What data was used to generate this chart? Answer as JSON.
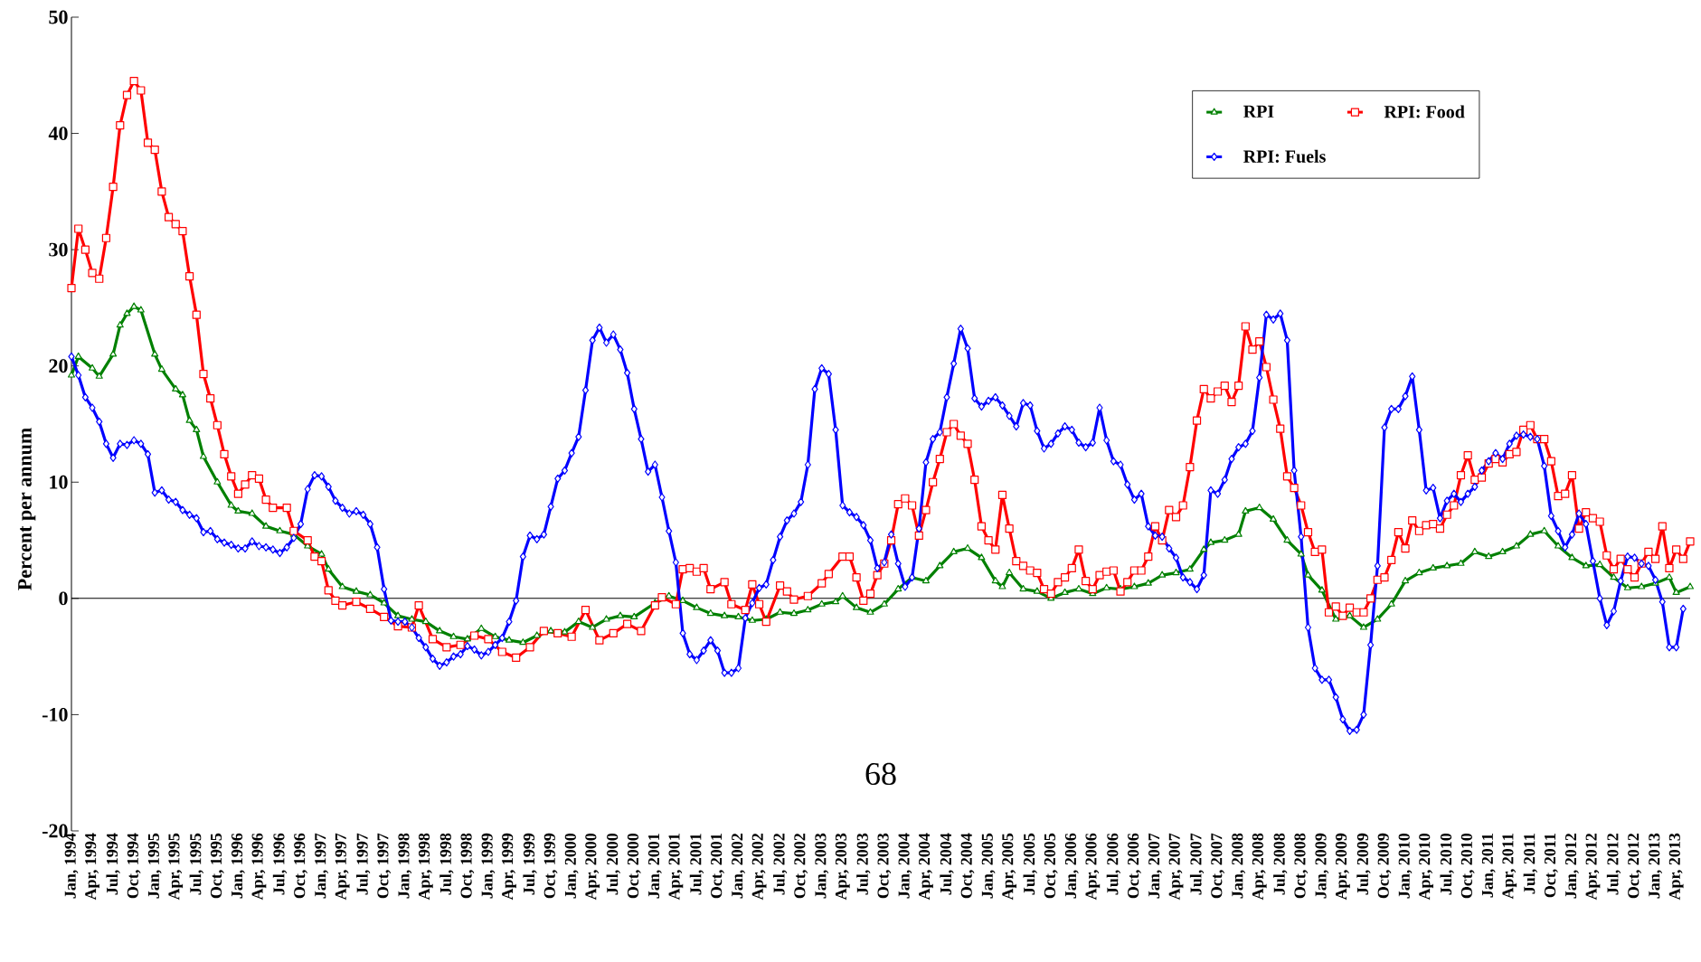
{
  "chart_data": {
    "type": "line",
    "ylabel": "Percent per annum",
    "xlim": [
      "1994-01",
      "2013-06"
    ],
    "ylim": [
      -20,
      50
    ],
    "yticks": [
      -20,
      -10,
      0,
      10,
      20,
      30,
      40,
      50
    ],
    "xticks": [
      {
        "value": "1994-01",
        "label": "Jan, 1994"
      },
      {
        "value": "1994-04",
        "label": "Apr, 1994"
      },
      {
        "value": "1994-07",
        "label": "Jul, 1994"
      },
      {
        "value": "1994-10",
        "label": "Oct, 1994"
      },
      {
        "value": "1995-01",
        "label": "Jan, 1995"
      },
      {
        "value": "1995-04",
        "label": "Apr, 1995"
      },
      {
        "value": "1995-07",
        "label": "Jul, 1995"
      },
      {
        "value": "1995-10",
        "label": "Oct, 1995"
      },
      {
        "value": "1996-01",
        "label": "Jan, 1996"
      },
      {
        "value": "1996-04",
        "label": "Apr, 1996"
      },
      {
        "value": "1996-07",
        "label": "Jul, 1996"
      },
      {
        "value": "1996-10",
        "label": "Oct, 1996"
      },
      {
        "value": "1997-01",
        "label": "Jan, 1997"
      },
      {
        "value": "1997-04",
        "label": "Apr, 1997"
      },
      {
        "value": "1997-07",
        "label": "Jul, 1997"
      },
      {
        "value": "1997-10",
        "label": "Oct, 1997"
      },
      {
        "value": "1998-01",
        "label": "Jan, 1998"
      },
      {
        "value": "1998-04",
        "label": "Apr, 1998"
      },
      {
        "value": "1998-07",
        "label": "Jul, 1998"
      },
      {
        "value": "1998-10",
        "label": "Oct, 1998"
      },
      {
        "value": "1999-01",
        "label": "Jan, 1999"
      },
      {
        "value": "1999-04",
        "label": "Apr, 1999"
      },
      {
        "value": "1999-07",
        "label": "Jul, 1999"
      },
      {
        "value": "1999-10",
        "label": "Oct, 1999"
      },
      {
        "value": "2000-01",
        "label": "Jan, 2000"
      },
      {
        "value": "2000-04",
        "label": "Apr, 2000"
      },
      {
        "value": "2000-07",
        "label": "Jul, 2000"
      },
      {
        "value": "2000-10",
        "label": "Oct, 2000"
      },
      {
        "value": "2001-01",
        "label": "Jan, 2001"
      },
      {
        "value": "2001-04",
        "label": "Apr, 2001"
      },
      {
        "value": "2001-07",
        "label": "Jul, 2001"
      },
      {
        "value": "2001-10",
        "label": "Oct, 2001"
      },
      {
        "value": "2002-01",
        "label": "Jan, 2002"
      },
      {
        "value": "2002-04",
        "label": "Apr, 2002"
      },
      {
        "value": "2002-07",
        "label": "Jul, 2002"
      },
      {
        "value": "2002-10",
        "label": "Oct, 2002"
      },
      {
        "value": "2003-01",
        "label": "Jan, 2003"
      },
      {
        "value": "2003-04",
        "label": "Apr, 2003"
      },
      {
        "value": "2003-07",
        "label": "Jul, 2003"
      },
      {
        "value": "2003-10",
        "label": "Oct, 2003"
      },
      {
        "value": "2004-01",
        "label": "Jan, 2004"
      },
      {
        "value": "2004-04",
        "label": "Apr, 2004"
      },
      {
        "value": "2004-07",
        "label": "Jul, 2004"
      },
      {
        "value": "2004-10",
        "label": "Oct, 2004"
      },
      {
        "value": "2005-01",
        "label": "Jan, 2005"
      },
      {
        "value": "2005-04",
        "label": "Apr, 2005"
      },
      {
        "value": "2005-07",
        "label": "Jul, 2005"
      },
      {
        "value": "2005-10",
        "label": "Oct, 2005"
      },
      {
        "value": "2006-01",
        "label": "Jan, 2006"
      },
      {
        "value": "2006-04",
        "label": "Apr, 2006"
      },
      {
        "value": "2006-07",
        "label": "Jul, 2006"
      },
      {
        "value": "2006-10",
        "label": "Oct, 2006"
      },
      {
        "value": "2007-01",
        "label": "Jan, 2007"
      },
      {
        "value": "2007-04",
        "label": "Apr, 2007"
      },
      {
        "value": "2007-07",
        "label": "Jul, 2007"
      },
      {
        "value": "2007-10",
        "label": "Oct, 2007"
      },
      {
        "value": "2008-01",
        "label": "Jan, 2008"
      },
      {
        "value": "2008-04",
        "label": "Apr, 2008"
      },
      {
        "value": "2008-07",
        "label": "Jul, 2008"
      },
      {
        "value": "2008-10",
        "label": "Oct, 2008"
      },
      {
        "value": "2009-01",
        "label": "Jan, 2009"
      },
      {
        "value": "2009-04",
        "label": "Apr, 2009"
      },
      {
        "value": "2009-07",
        "label": "Jul, 2009"
      },
      {
        "value": "2009-10",
        "label": "Oct, 2009"
      },
      {
        "value": "2010-01",
        "label": "Jan, 2010"
      },
      {
        "value": "2010-04",
        "label": "Apr, 2010"
      },
      {
        "value": "2010-07",
        "label": "Jul, 2010"
      },
      {
        "value": "2010-10",
        "label": "Oct, 2010"
      },
      {
        "value": "2011-01",
        "label": "Jan, 2011"
      },
      {
        "value": "2011-04",
        "label": "Apr, 2011"
      },
      {
        "value": "2011-07",
        "label": "Jul, 2011"
      },
      {
        "value": "2011-10",
        "label": "Oct, 2011"
      },
      {
        "value": "2012-01",
        "label": "Jan, 2012"
      },
      {
        "value": "2012-04",
        "label": "Apr, 2012"
      },
      {
        "value": "2012-07",
        "label": "Jul, 2012"
      },
      {
        "value": "2012-10",
        "label": "Oct, 2012"
      },
      {
        "value": "2013-01",
        "label": "Jan, 2013"
      },
      {
        "value": "2013-04",
        "label": "Apr, 2013"
      }
    ],
    "legend": "top right",
    "grid": false,
    "line_style": "solid",
    "annotations": [
      "68"
    ],
    "ref_lines": [
      {
        "axis": "y",
        "value": 0,
        "color": "#000000"
      }
    ],
    "series": [
      {
        "name": "RPI",
        "color": "#008000",
        "marker": "triangle",
        "x": [
          "1994-01",
          "1994-02",
          "1994-04",
          "1994-05",
          "1994-07",
          "1994-08",
          "1994-09",
          "1994-10",
          "1994-11",
          "1995-01",
          "1995-02",
          "1995-04",
          "1995-05",
          "1995-06",
          "1995-07",
          "1995-08",
          "1995-10",
          "1995-12",
          "1996-01",
          "1996-03",
          "1996-05",
          "1996-07",
          "1996-09",
          "1996-11",
          "1997-01",
          "1997-02",
          "1997-04",
          "1997-06",
          "1997-08",
          "1997-10",
          "1997-12",
          "1998-02",
          "1998-04",
          "1998-06",
          "1998-08",
          "1998-10",
          "1998-12",
          "1999-02",
          "1999-04",
          "1999-06",
          "1999-08",
          "1999-10",
          "1999-12",
          "2000-02",
          "2000-04",
          "2000-06",
          "2000-08",
          "2000-10",
          "2001-01",
          "2001-03",
          "2001-05",
          "2001-07",
          "2001-09",
          "2001-11",
          "2002-01",
          "2002-03",
          "2002-05",
          "2002-07",
          "2002-09",
          "2002-11",
          "2003-01",
          "2003-03",
          "2003-04",
          "2003-06",
          "2003-08",
          "2003-10",
          "2003-12",
          "2004-02",
          "2004-04",
          "2004-06",
          "2004-08",
          "2004-10",
          "2004-12",
          "2005-02",
          "2005-03",
          "2005-04",
          "2005-06",
          "2005-08",
          "2005-10",
          "2005-12",
          "2006-02",
          "2006-04",
          "2006-06",
          "2006-08",
          "2006-10",
          "2006-12",
          "2007-02",
          "2007-04",
          "2007-06",
          "2007-08",
          "2007-09",
          "2007-11",
          "2008-01",
          "2008-02",
          "2008-04",
          "2008-06",
          "2008-08",
          "2008-10",
          "2008-11",
          "2009-01",
          "2009-03",
          "2009-05",
          "2009-07",
          "2009-09",
          "2009-11",
          "2010-01",
          "2010-03",
          "2010-05",
          "2010-07",
          "2010-09",
          "2010-11",
          "2011-01",
          "2011-03",
          "2011-05",
          "2011-07",
          "2011-09",
          "2011-11",
          "2012-01",
          "2012-03",
          "2012-05",
          "2012-07",
          "2012-09",
          "2012-11",
          "2013-01",
          "2013-03",
          "2013-04",
          "2013-06"
        ],
        "values": [
          19.2,
          20.8,
          19.8,
          19.1,
          21,
          23.5,
          24.5,
          25.1,
          24.8,
          21,
          19.7,
          18,
          17.5,
          15.3,
          14.5,
          12.2,
          10,
          8,
          7.5,
          7.3,
          6.2,
          5.8,
          5.5,
          4.5,
          3.8,
          2.5,
          1,
          0.6,
          0.3,
          -0.4,
          -1.5,
          -1.8,
          -2,
          -2.8,
          -3.3,
          -3.5,
          -2.6,
          -3.3,
          -3.6,
          -3.8,
          -3.2,
          -2.8,
          -2.9,
          -2,
          -2.5,
          -1.8,
          -1.5,
          -1.6,
          -0.4,
          0.2,
          -0.2,
          -0.8,
          -1.3,
          -1.5,
          -1.6,
          -1.9,
          -1.8,
          -1.2,
          -1.3,
          -1,
          -0.5,
          -0.3,
          0.2,
          -0.8,
          -1.2,
          -0.5,
          0.8,
          1.8,
          1.5,
          2.8,
          4,
          4.3,
          3.5,
          1.5,
          1,
          2.2,
          0.8,
          0.6,
          0,
          0.5,
          0.8,
          0.4,
          0.9,
          0.8,
          1,
          1.3,
          2,
          2.2,
          2.5,
          4.2,
          4.8,
          5,
          5.5,
          7.5,
          7.8,
          6.8,
          5,
          3.8,
          2,
          0.7,
          -1.8,
          -1.5,
          -2.5,
          -1.8,
          -0.5,
          1.5,
          2.2,
          2.6,
          2.8,
          3,
          4,
          3.6,
          4,
          4.5,
          5.5,
          5.8,
          4.5,
          3.5,
          2.8,
          2.9,
          1.8,
          0.9,
          1,
          1.3,
          1.8,
          0.5,
          1
        ]
      },
      {
        "name": "RPI: Food",
        "color": "#ff0000",
        "marker": "square",
        "x": [
          "1994-01",
          "1994-02",
          "1994-03",
          "1994-04",
          "1994-05",
          "1994-06",
          "1994-07",
          "1994-08",
          "1994-09",
          "1994-10",
          "1994-11",
          "1994-12",
          "1995-01",
          "1995-02",
          "1995-03",
          "1995-04",
          "1995-05",
          "1995-06",
          "1995-07",
          "1995-08",
          "1995-09",
          "1995-10",
          "1995-11",
          "1995-12",
          "1996-01",
          "1996-02",
          "1996-03",
          "1996-04",
          "1996-05",
          "1996-06",
          "1996-08",
          "1996-09",
          "1996-11",
          "1996-12",
          "1997-01",
          "1997-02",
          "1997-03",
          "1997-04",
          "1997-06",
          "1997-08",
          "1997-10",
          "1997-12",
          "1998-02",
          "1998-03",
          "1998-05",
          "1998-07",
          "1998-09",
          "1998-11",
          "1999-01",
          "1999-03",
          "1999-05",
          "1999-07",
          "1999-09",
          "1999-11",
          "2000-01",
          "2000-03",
          "2000-05",
          "2000-07",
          "2000-09",
          "2000-11",
          "2001-01",
          "2001-02",
          "2001-04",
          "2001-05",
          "2001-06",
          "2001-07",
          "2001-08",
          "2001-09",
          "2001-11",
          "2001-12",
          "2002-02",
          "2002-03",
          "2002-04",
          "2002-05",
          "2002-07",
          "2002-08",
          "2002-09",
          "2002-11",
          "2003-01",
          "2003-02",
          "2003-04",
          "2003-05",
          "2003-06",
          "2003-07",
          "2003-08",
          "2003-09",
          "2003-10",
          "2003-11",
          "2003-12",
          "2004-01",
          "2004-02",
          "2004-03",
          "2004-04",
          "2004-05",
          "2004-06",
          "2004-07",
          "2004-08",
          "2004-09",
          "2004-10",
          "2004-11",
          "2004-12",
          "2005-01",
          "2005-02",
          "2005-03",
          "2005-04",
          "2005-05",
          "2005-06",
          "2005-07",
          "2005-08",
          "2005-09",
          "2005-10",
          "2005-11",
          "2005-12",
          "2006-01",
          "2006-02",
          "2006-03",
          "2006-04",
          "2006-05",
          "2006-06",
          "2006-07",
          "2006-08",
          "2006-09",
          "2006-10",
          "2006-11",
          "2006-12",
          "2007-01",
          "2007-02",
          "2007-03",
          "2007-04",
          "2007-05",
          "2007-06",
          "2007-07",
          "2007-08",
          "2007-09",
          "2007-10",
          "2007-11",
          "2007-12",
          "2008-01",
          "2008-02",
          "2008-03",
          "2008-04",
          "2008-05",
          "2008-06",
          "2008-07",
          "2008-08",
          "2008-09",
          "2008-10",
          "2008-11",
          "2008-12",
          "2009-01",
          "2009-02",
          "2009-03",
          "2009-04",
          "2009-05",
          "2009-06",
          "2009-07",
          "2009-08",
          "2009-09",
          "2009-10",
          "2009-11",
          "2009-12",
          "2010-01",
          "2010-02",
          "2010-03",
          "2010-04",
          "2010-05",
          "2010-06",
          "2010-07",
          "2010-08",
          "2010-09",
          "2010-10",
          "2010-11",
          "2010-12",
          "2011-01",
          "2011-02",
          "2011-03",
          "2011-04",
          "2011-05",
          "2011-06",
          "2011-07",
          "2011-08",
          "2011-09",
          "2011-10",
          "2011-11",
          "2011-12",
          "2012-01",
          "2012-02",
          "2012-03",
          "2012-04",
          "2012-05",
          "2012-06",
          "2012-07",
          "2012-08",
          "2012-09",
          "2012-10",
          "2012-11",
          "2012-12",
          "2013-01",
          "2013-02",
          "2013-03",
          "2013-04",
          "2013-05",
          "2013-06"
        ],
        "values": [
          26.7,
          31.8,
          30,
          28,
          27.5,
          31,
          35.4,
          40.7,
          43.3,
          44.5,
          43.7,
          39.2,
          38.6,
          35,
          32.8,
          32.2,
          31.6,
          27.7,
          24.4,
          19.3,
          17.2,
          14.9,
          12.4,
          10.5,
          9,
          9.8,
          10.6,
          10.3,
          8.5,
          7.8,
          7.8,
          5.8,
          5,
          3.6,
          3.2,
          0.7,
          -0.2,
          -0.6,
          -0.3,
          -0.9,
          -1.6,
          -2.4,
          -2.5,
          -0.6,
          -3.5,
          -4.2,
          -4,
          -3.2,
          -3.5,
          -4.6,
          -5.1,
          -4.2,
          -2.8,
          -3,
          -3.3,
          -1,
          -3.6,
          -3,
          -2.2,
          -2.8,
          -0.6,
          0.1,
          -0.5,
          2.5,
          2.6,
          2.3,
          2.6,
          0.8,
          1.4,
          -0.5,
          -1,
          1.2,
          -0.5,
          -2,
          1.1,
          0.6,
          -0.1,
          0.2,
          1.3,
          2.1,
          3.6,
          3.6,
          1.8,
          -0.2,
          0.4,
          2,
          3,
          5,
          8.1,
          8.6,
          8,
          5.4,
          7.6,
          10,
          12,
          14.3,
          15,
          14,
          13.3,
          10.2,
          6.2,
          5,
          4.2,
          8.9,
          6,
          3.2,
          2.8,
          2.4,
          2.2,
          0.8,
          0.4,
          1.4,
          1.8,
          2.6,
          4.2,
          1.5,
          0.8,
          2,
          2.3,
          2.4,
          0.6,
          1.4,
          2.4,
          2.4,
          3.6,
          6.2,
          5,
          7.6,
          7,
          8,
          11.3,
          15.3,
          18,
          17.2,
          17.8,
          18.3,
          16.9,
          18.3,
          23.4,
          21.4,
          22.1,
          19.9,
          17.1,
          14.6,
          10.5,
          9.5,
          8,
          5.7,
          4,
          4.2,
          -1.2,
          -0.7,
          -1.5,
          -0.8,
          -1.2,
          -1.2,
          0,
          1.6,
          1.8,
          3.3,
          5.7,
          4.3,
          6.7,
          5.8,
          6.3,
          6.4,
          6,
          7.2,
          8,
          10.6,
          12.3,
          10.2,
          10.4,
          11.6,
          12,
          11.7,
          12.4,
          12.6,
          14.5,
          14.9,
          13.7,
          13.7,
          11.8,
          8.8,
          9,
          10.6,
          6,
          7.4,
          6.9,
          6.6,
          3.7,
          2.5,
          3.4,
          2.5,
          1.8,
          3,
          4,
          3.4,
          6.2,
          2.6,
          4.2,
          3.4,
          4.9
        ]
      },
      {
        "name": "RPI: Fuels",
        "color": "#0000ff",
        "marker": "diamond",
        "x": [
          "1994-01",
          "1994-02",
          "1994-03",
          "1994-04",
          "1994-05",
          "1994-06",
          "1994-07",
          "1994-08",
          "1994-09",
          "1994-10",
          "1994-11",
          "1994-12",
          "1995-01",
          "1995-02",
          "1995-03",
          "1995-04",
          "1995-05",
          "1995-06",
          "1995-07",
          "1995-08",
          "1995-09",
          "1995-10",
          "1995-11",
          "1995-12",
          "1996-01",
          "1996-02",
          "1996-03",
          "1996-04",
          "1996-05",
          "1996-06",
          "1996-07",
          "1996-08",
          "1996-09",
          "1996-10",
          "1996-11",
          "1996-12",
          "1997-01",
          "1997-02",
          "1997-03",
          "1997-04",
          "1997-05",
          "1997-06",
          "1997-07",
          "1997-08",
          "1997-09",
          "1997-10",
          "1997-11",
          "1997-12",
          "1998-01",
          "1998-02",
          "1998-03",
          "1998-04",
          "1998-05",
          "1998-06",
          "1998-07",
          "1998-08",
          "1998-09",
          "1998-10",
          "1998-11",
          "1998-12",
          "1999-01",
          "1999-02",
          "1999-03",
          "1999-04",
          "1999-05",
          "1999-06",
          "1999-07",
          "1999-08",
          "1999-09",
          "1999-10",
          "1999-11",
          "1999-12",
          "2000-01",
          "2000-02",
          "2000-03",
          "2000-04",
          "2000-05",
          "2000-06",
          "2000-07",
          "2000-08",
          "2000-09",
          "2000-10",
          "2000-11",
          "2000-12",
          "2001-01",
          "2001-02",
          "2001-03",
          "2001-04",
          "2001-05",
          "2001-06",
          "2001-07",
          "2001-08",
          "2001-09",
          "2001-10",
          "2001-11",
          "2001-12",
          "2002-01",
          "2002-02",
          "2002-03",
          "2002-04",
          "2002-05",
          "2002-06",
          "2002-07",
          "2002-08",
          "2002-09",
          "2002-10",
          "2002-11",
          "2002-12",
          "2003-01",
          "2003-02",
          "2003-03",
          "2003-04",
          "2003-05",
          "2003-06",
          "2003-07",
          "2003-08",
          "2003-09",
          "2003-10",
          "2003-11",
          "2003-12",
          "2004-01",
          "2004-02",
          "2004-03",
          "2004-04",
          "2004-05",
          "2004-06",
          "2004-07",
          "2004-08",
          "2004-09",
          "2004-10",
          "2004-11",
          "2004-12",
          "2005-01",
          "2005-02",
          "2005-03",
          "2005-04",
          "2005-05",
          "2005-06",
          "2005-07",
          "2005-08",
          "2005-09",
          "2005-10",
          "2005-11",
          "2005-12",
          "2006-01",
          "2006-02",
          "2006-03",
          "2006-04",
          "2006-05",
          "2006-06",
          "2006-07",
          "2006-08",
          "2006-09",
          "2006-10",
          "2006-11",
          "2006-12",
          "2007-01",
          "2007-02",
          "2007-03",
          "2007-04",
          "2007-05",
          "2007-06",
          "2007-07",
          "2007-08",
          "2007-09",
          "2007-10",
          "2007-11",
          "2007-12",
          "2008-01",
          "2008-02",
          "2008-03",
          "2008-04",
          "2008-05",
          "2008-06",
          "2008-07",
          "2008-08",
          "2008-09",
          "2008-10",
          "2008-11",
          "2008-12",
          "2009-01",
          "2009-02",
          "2009-03",
          "2009-04",
          "2009-05",
          "2009-06",
          "2009-07",
          "2009-08",
          "2009-09",
          "2009-10",
          "2009-11",
          "2009-12",
          "2010-01",
          "2010-02",
          "2010-03",
          "2010-04",
          "2010-05",
          "2010-06",
          "2010-07",
          "2010-08",
          "2010-09",
          "2010-10",
          "2010-11",
          "2010-12",
          "2011-01",
          "2011-02",
          "2011-03",
          "2011-04",
          "2011-05",
          "2011-06",
          "2011-07",
          "2011-08",
          "2011-09",
          "2011-10",
          "2011-11",
          "2011-12",
          "2012-01",
          "2012-02",
          "2012-03",
          "2012-04",
          "2012-05",
          "2012-06",
          "2012-07",
          "2012-08",
          "2012-09",
          "2012-10",
          "2012-11",
          "2012-12",
          "2013-01",
          "2013-02",
          "2013-03",
          "2013-04",
          "2013-05"
        ],
        "values": [
          20.8,
          19.2,
          17.3,
          16.4,
          15.2,
          13.3,
          12.1,
          13.3,
          13.2,
          13.6,
          13.3,
          12.4,
          9.1,
          9.3,
          8.5,
          8.3,
          7.6,
          7.2,
          6.9,
          5.7,
          5.8,
          5.1,
          4.8,
          4.6,
          4.3,
          4.3,
          4.9,
          4.5,
          4.4,
          4.2,
          3.9,
          4.4,
          5.2,
          6.4,
          9.4,
          10.6,
          10.5,
          9.6,
          8.4,
          7.8,
          7.3,
          7.5,
          7.2,
          6.4,
          4.4,
          0.8,
          -1.9,
          -2,
          -2,
          -2.5,
          -3.4,
          -4.2,
          -5.2,
          -5.8,
          -5.5,
          -5,
          -4.8,
          -4.1,
          -4.4,
          -4.9,
          -4.6,
          -4,
          -3.4,
          -2,
          -0.2,
          3.6,
          5.4,
          5.1,
          5.5,
          7.9,
          10.3,
          11,
          12.5,
          13.9,
          17.9,
          22.2,
          23.3,
          22,
          22.7,
          21.4,
          19.4,
          16.3,
          13.7,
          10.9,
          11.5,
          8.7,
          5.8,
          3.1,
          -3,
          -4.8,
          -5.3,
          -4.5,
          -3.6,
          -4.5,
          -6.4,
          -6.4,
          -6,
          -1.7,
          -0.4,
          0.9,
          1.2,
          3.3,
          5.3,
          6.7,
          7.3,
          8.3,
          11.5,
          18,
          19.8,
          19.3,
          14.5,
          8,
          7.4,
          7,
          6.3,
          5,
          2.6,
          3.1,
          5.5,
          3,
          1,
          1.8,
          6,
          11.7,
          13.7,
          14.3,
          17.3,
          20.2,
          23.2,
          21.5,
          17.2,
          16.5,
          17,
          17.3,
          16.6,
          15.7,
          14.8,
          16.8,
          16.6,
          14.4,
          12.9,
          13.3,
          14.2,
          14.8,
          14.5,
          13.4,
          13,
          13.4,
          16.4,
          13.6,
          11.8,
          11.5,
          9.8,
          8.5,
          9,
          6.2,
          5.4,
          5.3,
          4.3,
          3.5,
          1.8,
          1.4,
          0.8,
          2,
          9.3,
          9,
          10.2,
          12,
          13,
          13.3,
          14.4,
          19,
          24.4,
          24,
          24.5,
          22.2,
          11,
          5.3,
          -2.5,
          -6,
          -7,
          -7,
          -8.5,
          -10.4,
          -11.4,
          -11.3,
          -10,
          -4,
          2.8,
          14.7,
          16.3,
          16.3,
          17.4,
          19.1,
          14.5,
          9.3,
          9.5,
          6.9,
          8.4,
          9,
          8.3,
          9,
          9.6,
          11,
          11.8,
          12.5,
          12,
          13.3,
          14,
          14.1,
          13.9,
          13.7,
          11.4,
          7.1,
          5.8,
          4.4,
          5.5,
          7.3,
          6.4,
          3.2,
          0,
          -2.3,
          -1.1,
          1.5,
          3.6,
          3.5,
          3,
          2.8,
          1.6,
          -0.3,
          -4.2,
          -4.2,
          -0.9
        ]
      }
    ]
  }
}
